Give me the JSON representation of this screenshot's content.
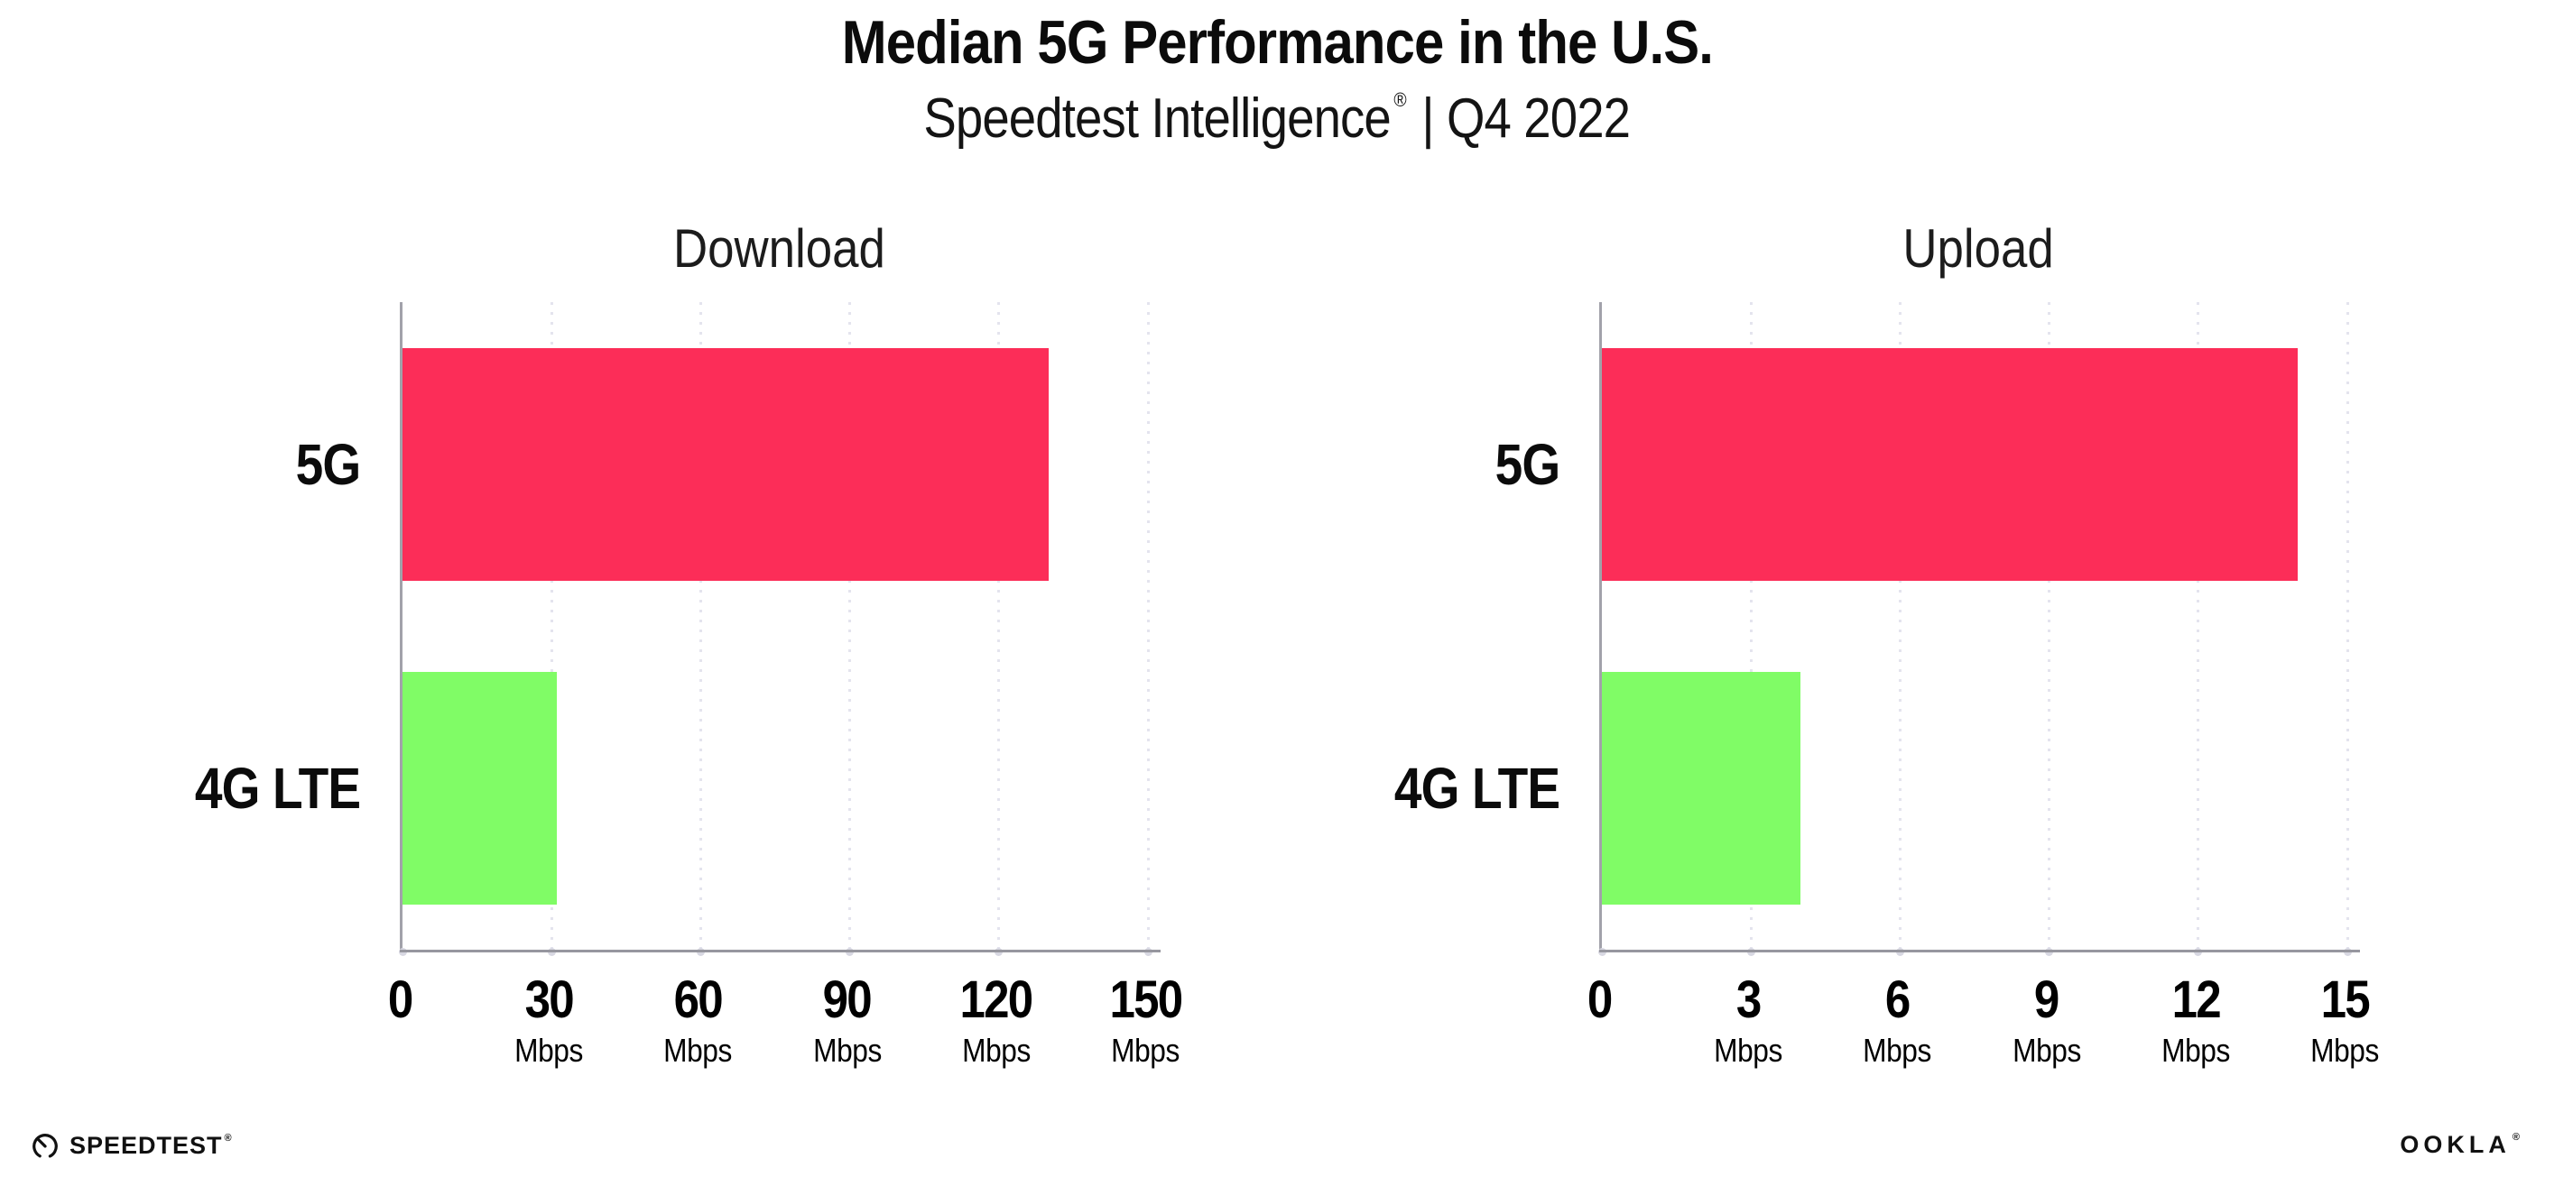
{
  "header": {
    "title": "Median 5G Performance in the U.S.",
    "subtitle_brand": "Speedtest Intelligence",
    "subtitle_reg": "®",
    "subtitle_rest": "| Q4 2022"
  },
  "colors": {
    "bar_5g": "#FC2D58",
    "bar_4g_lte": "#80FC66",
    "gridline": "#e4e4ee",
    "axis": "#97979f",
    "text": "#0b0b0b"
  },
  "chart_data": [
    {
      "type": "bar",
      "orientation": "horizontal",
      "title": "Download",
      "categories": [
        "5G",
        "4G LTE"
      ],
      "values": [
        130,
        31
      ],
      "unit": "Mbps",
      "xlim": [
        0,
        150
      ],
      "ticks": [
        0,
        30,
        60,
        90,
        120,
        150
      ],
      "grid": "dotted-vertical",
      "legend": "none",
      "bar_colors": [
        "#FC2D58",
        "#80FC66"
      ]
    },
    {
      "type": "bar",
      "orientation": "horizontal",
      "title": "Upload",
      "categories": [
        "5G",
        "4G LTE"
      ],
      "values": [
        14,
        4
      ],
      "unit": "Mbps",
      "xlim": [
        0,
        15
      ],
      "ticks": [
        0,
        3,
        6,
        9,
        12,
        15
      ],
      "grid": "dotted-vertical",
      "legend": "none",
      "bar_colors": [
        "#FC2D58",
        "#80FC66"
      ]
    }
  ],
  "footer": {
    "speedtest_label": "SPEEDTEST",
    "speedtest_mark": "®",
    "ookla_label": "OOKLA",
    "ookla_mark": "®"
  }
}
